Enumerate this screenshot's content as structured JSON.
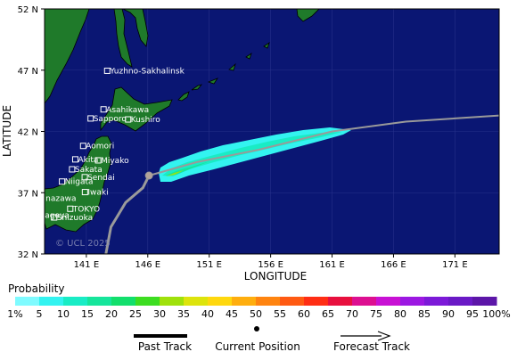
{
  "map": {
    "x_axis_title": "LONGITUDE",
    "y_axis_title": "LATITUDE",
    "x_ticks": [
      {
        "lon": 141,
        "label": "141 E"
      },
      {
        "lon": 146,
        "label": "146 E"
      },
      {
        "lon": 151,
        "label": "151 E"
      },
      {
        "lon": 156,
        "label": "156 E"
      },
      {
        "lon": 161,
        "label": "161 E"
      },
      {
        "lon": 166,
        "label": "166 E"
      },
      {
        "lon": 171,
        "label": "171 E"
      }
    ],
    "y_ticks": [
      {
        "lat": 52,
        "label": "52 N"
      },
      {
        "lat": 47,
        "label": "47 N"
      },
      {
        "lat": 42,
        "label": "42 N"
      },
      {
        "lat": 37,
        "label": "37 N"
      },
      {
        "lat": 32,
        "label": "32 N"
      }
    ],
    "extent": {
      "lon_min": 137.6,
      "lon_max": 174.6,
      "lat_min": 32,
      "lat_max": 52
    },
    "watermark": "© UCL 2025",
    "colors": {
      "ocean": "#0a1673",
      "land": "#1f7a2a",
      "track": "#9a9a9a",
      "grid": "#25308a"
    },
    "cities": [
      {
        "name": "Yuzhno-Sakhalinsk",
        "lon": 142.7,
        "lat": 46.95
      },
      {
        "name": "Asahikawa",
        "lon": 142.4,
        "lat": 43.8
      },
      {
        "name": "Sapporo",
        "lon": 141.35,
        "lat": 43.06
      },
      {
        "name": "Kushiro",
        "lon": 144.4,
        "lat": 42.98
      },
      {
        "name": "Aomori",
        "lon": 140.74,
        "lat": 40.82
      },
      {
        "name": "Akita",
        "lon": 140.1,
        "lat": 39.72
      },
      {
        "name": "Miyako",
        "lon": 141.96,
        "lat": 39.64
      },
      {
        "name": "Sakata",
        "lon": 139.84,
        "lat": 38.91
      },
      {
        "name": "Sendai",
        "lon": 140.87,
        "lat": 38.27
      },
      {
        "name": "Niigata",
        "lon": 139.02,
        "lat": 37.91
      },
      {
        "name": "Iwaki",
        "lon": 140.89,
        "lat": 37.05
      },
      {
        "name": "Kanazawa",
        "lon": 136.65,
        "lat": 36.56
      },
      {
        "name": "TOKYO",
        "lon": 139.69,
        "lat": 35.69
      },
      {
        "name": "Nagoya",
        "lon": 136.91,
        "lat": 35.18
      },
      {
        "name": "Shizuoka",
        "lon": 138.38,
        "lat": 34.98
      }
    ],
    "past_track": [
      [
        142.5,
        31.5
      ],
      [
        143.0,
        34.2
      ],
      [
        144.2,
        36.2
      ],
      [
        145.6,
        37.4
      ],
      [
        146.1,
        38.4
      ]
    ],
    "current_position": [
      146.1,
      38.4
    ],
    "forecast_track": [
      [
        146.1,
        38.4
      ],
      [
        150.0,
        39.5
      ],
      [
        155.0,
        40.5
      ],
      [
        161.0,
        42.0
      ],
      [
        167.0,
        42.8
      ],
      [
        174.6,
        43.3
      ]
    ]
  },
  "legend": {
    "title": "Probability",
    "labels": [
      "1%",
      "5",
      "10",
      "15",
      "20",
      "25",
      "30",
      "35",
      "40",
      "45",
      "50",
      "55",
      "60",
      "65",
      "70",
      "75",
      "80",
      "85",
      "90",
      "95",
      "100%"
    ],
    "colors": [
      "#7ffbff",
      "#33f3f0",
      "#19ecc5",
      "#16e59b",
      "#12df6c",
      "#3ddd21",
      "#9fe10b",
      "#dde40c",
      "#ffd80e",
      "#ffae0e",
      "#ff8410",
      "#ff5a12",
      "#ff2e14",
      "#e8103e",
      "#dd0f91",
      "#c811d4",
      "#9c18e2",
      "#7c1ad8",
      "#6a1ac6",
      "#5c16a8"
    ]
  },
  "key": {
    "past_track": "Past Track",
    "current_position": "Current Position",
    "forecast_track": "Forecast Track"
  }
}
